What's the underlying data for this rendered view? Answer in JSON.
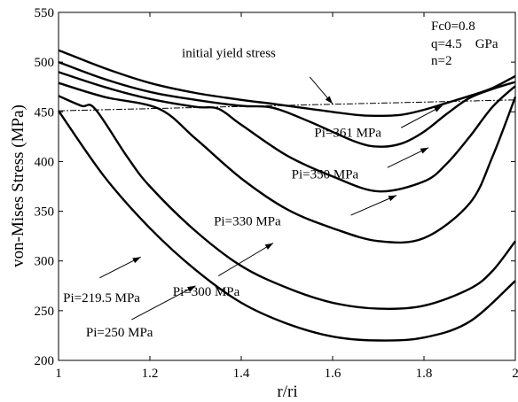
{
  "chart_data": {
    "type": "line",
    "xlabel": "r/ri",
    "ylabel": "von-Mises Stress (MPa)",
    "xlim": [
      1,
      2
    ],
    "ylim": [
      200,
      550
    ],
    "xticks": [
      "1",
      "1.2",
      "1.4",
      "1.6",
      "1.8",
      "2"
    ],
    "yticks": [
      "200",
      "250",
      "300",
      "350",
      "400",
      "450",
      "500",
      "550"
    ],
    "grid": false,
    "parameters_box": [
      "Fc0=0.8",
      "q=4.5    GPa",
      "n=2"
    ],
    "yield_line": {
      "label": "initial yield stress",
      "x": [
        1,
        2
      ],
      "y": [
        451,
        462
      ]
    },
    "series": [
      {
        "name": "Pi=361 MPa",
        "x": [
          1.0,
          1.1,
          1.2,
          1.3,
          1.4,
          1.47,
          1.55,
          1.65,
          1.7,
          1.75,
          1.8,
          1.85,
          1.9,
          1.95,
          2.0
        ],
        "y": [
          512,
          494,
          479,
          469,
          462,
          458,
          453,
          447,
          446,
          447,
          452,
          459,
          466,
          474,
          486
        ]
      },
      {
        "name": "Pi=350 MPa",
        "x": [
          1.0,
          1.1,
          1.2,
          1.3,
          1.4,
          1.47,
          1.55,
          1.65,
          1.7,
          1.75,
          1.8,
          1.85,
          1.9,
          1.95,
          2.0
        ],
        "y": [
          500,
          483,
          470,
          462,
          456,
          454,
          440,
          420,
          415,
          418,
          430,
          448,
          464,
          473,
          480
        ]
      },
      {
        "name": "Pi=330 MPa",
        "x": [
          1.0,
          1.1,
          1.2,
          1.3,
          1.35,
          1.4,
          1.5,
          1.6,
          1.7,
          1.8,
          1.85,
          1.9,
          1.95,
          2.0
        ],
        "y": [
          490,
          475,
          463,
          455,
          453,
          437,
          406,
          385,
          370,
          380,
          398,
          425,
          455,
          476
        ]
      },
      {
        "name": "Pi=300 MPa",
        "x": [
          1.0,
          1.1,
          1.22,
          1.3,
          1.4,
          1.5,
          1.6,
          1.7,
          1.8,
          1.9,
          1.95,
          2.0
        ],
        "y": [
          479,
          465,
          453,
          423,
          383,
          352,
          333,
          320,
          323,
          358,
          405,
          465
        ]
      },
      {
        "name": "Pi=250 MPa",
        "x": [
          1.0,
          1.05,
          1.08,
          1.15,
          1.2,
          1.3,
          1.4,
          1.5,
          1.6,
          1.7,
          1.8,
          1.9,
          1.95,
          2.0
        ],
        "y": [
          466,
          456,
          453,
          405,
          375,
          330,
          295,
          273,
          258,
          252,
          255,
          272,
          290,
          320
        ]
      },
      {
        "name": "Pi=219.5 MPa",
        "x": [
          1.0,
          1.1,
          1.2,
          1.3,
          1.4,
          1.5,
          1.6,
          1.7,
          1.8,
          1.9,
          2.0
        ],
        "y": [
          451,
          385,
          333,
          291,
          258,
          237,
          224,
          220,
          223,
          239,
          280
        ]
      }
    ],
    "annotations": [
      {
        "text": "initial yield stress",
        "tx": 1.27,
        "ty": 505,
        "ax": 1.55,
        "ay": 485,
        "hx": 1.6,
        "hy": 458
      },
      {
        "text": "Pi=361 MPa",
        "tx": 1.56,
        "ty": 425,
        "ax": 1.75,
        "ay": 434,
        "hx": 1.84,
        "hy": 456
      },
      {
        "text": "Pi=350 MPa",
        "tx": 1.51,
        "ty": 383,
        "ax": 1.72,
        "ay": 394,
        "hx": 1.81,
        "hy": 414
      },
      {
        "text": "Pi=330 MPa",
        "tx": 1.34,
        "ty": 336,
        "ax": 1.64,
        "ay": 346,
        "hx": 1.74,
        "hy": 366
      },
      {
        "text": "Pi=300 MPa",
        "tx": 1.25,
        "ty": 265,
        "ax": 1.35,
        "ay": 285,
        "hx": 1.47,
        "hy": 318
      },
      {
        "text": "Pi=219.5 MPa",
        "tx": 1.01,
        "ty": 259,
        "ax": 1.09,
        "ay": 283,
        "hx": 1.18,
        "hy": 304
      },
      {
        "text": "Pi=250 MPa",
        "tx": 1.06,
        "ty": 224,
        "ax": 1.16,
        "ay": 241,
        "hx": 1.3,
        "hy": 275
      }
    ]
  }
}
